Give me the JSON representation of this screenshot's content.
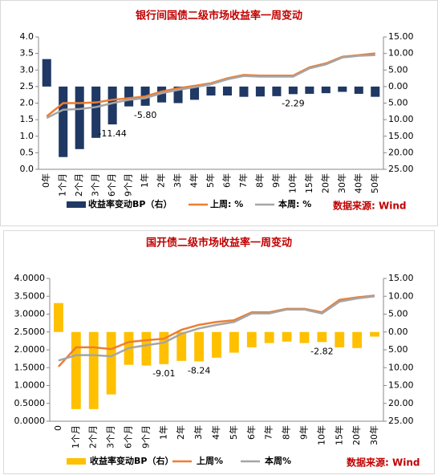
{
  "chart_data": [
    {
      "type": "combo",
      "title": "银行间国债二级市场收益率一周变动",
      "categories": [
        "0年",
        "1个月",
        "2个月",
        "3个月",
        "6个月",
        "9个月",
        "1年",
        "2年",
        "3年",
        "4年",
        "5年",
        "6年",
        "7年",
        "8年",
        "9年",
        "10年",
        "15年",
        "20年",
        "30年",
        "40年",
        "50年"
      ],
      "series": [
        {
          "name": "收益率变动BP（右）",
          "type": "bar",
          "axis": "y2",
          "color": "#1F3864",
          "values": [
            8.3,
            -21.3,
            -18.9,
            -15.5,
            -11.44,
            -6.0,
            -5.8,
            -4.8,
            -5.0,
            -4.0,
            -2.7,
            -2.7,
            -3.1,
            -3.0,
            -2.9,
            -2.29,
            -2.2,
            -2.0,
            -1.6,
            -2.2,
            -3.1
          ],
          "value_labels": [
            null,
            null,
            null,
            null,
            "-11.44",
            null,
            "-5.80",
            null,
            null,
            null,
            null,
            null,
            null,
            null,
            null,
            "-2.29",
            null,
            null,
            null,
            null,
            null
          ]
        },
        {
          "name": "上周: %",
          "type": "line",
          "color": "#ED7D31",
          "values": [
            1.6,
            2.0,
            2.0,
            2.02,
            2.1,
            2.15,
            2.2,
            2.35,
            2.45,
            2.52,
            2.6,
            2.75,
            2.85,
            2.83,
            2.83,
            2.83,
            3.08,
            3.2,
            3.4,
            3.45,
            3.5
          ]
        },
        {
          "name": "本周: %",
          "type": "line",
          "color": "#A5A5A5",
          "values": [
            1.55,
            1.8,
            1.82,
            1.88,
            2.0,
            2.1,
            2.15,
            2.3,
            2.4,
            2.48,
            2.57,
            2.72,
            2.82,
            2.8,
            2.8,
            2.8,
            3.05,
            3.17,
            3.38,
            3.43,
            3.45
          ]
        }
      ],
      "ylim": [
        0,
        4
      ],
      "yticks": [
        {
          "value": 0,
          "label": "0.0"
        },
        {
          "value": 0.5,
          "label": "0.5"
        },
        {
          "value": 1,
          "label": "1.0"
        },
        {
          "value": 1.5,
          "label": "1.5"
        },
        {
          "value": 2,
          "label": "2.0"
        },
        {
          "value": 2.5,
          "label": "2.5"
        },
        {
          "value": 3,
          "label": "3.0"
        },
        {
          "value": 3.5,
          "label": "3.5"
        },
        {
          "value": 4,
          "label": "4.0"
        }
      ],
      "y2lim": [
        -25,
        15
      ],
      "y2ticks": [
        {
          "value": 15,
          "label": "15.00"
        },
        {
          "value": 10,
          "label": "10.00"
        },
        {
          "value": 5,
          "label": "5.00"
        },
        {
          "value": 0,
          "label": "0.00"
        },
        {
          "value": -5,
          "label": "5.00"
        },
        {
          "value": -10,
          "label": "10.00"
        },
        {
          "value": -15,
          "label": "15.00"
        },
        {
          "value": -20,
          "label": "20.00"
        },
        {
          "value": -25,
          "label": "25.00"
        }
      ],
      "source": "数据来源: Wind"
    },
    {
      "type": "combo",
      "title": "国开债二级市场收益率一周变动",
      "categories": [
        "0",
        "1个月",
        "2个月",
        "3个月",
        "6个月",
        "9个月",
        "1年",
        "2年",
        "3年",
        "4年",
        "5年",
        "6年",
        "7年",
        "8年",
        "9年",
        "10年",
        "15年",
        "20年",
        "30年"
      ],
      "series": [
        {
          "name": "收益率变动BP（右）",
          "type": "bar",
          "axis": "y2",
          "color": "#FFC000",
          "values": [
            8.1,
            -21.6,
            -21.6,
            -17.5,
            -9.2,
            -9.4,
            -9.01,
            -8.1,
            -8.24,
            -7.2,
            -5.8,
            -4.3,
            -3.1,
            -2.7,
            -3.1,
            -2.82,
            -4.3,
            -4.5,
            -1.3
          ],
          "value_labels": [
            null,
            null,
            null,
            null,
            null,
            null,
            "-9.01",
            null,
            "-8.24",
            null,
            null,
            null,
            null,
            null,
            null,
            "-2.82",
            null,
            null,
            null
          ]
        },
        {
          "name": "上周%",
          "type": "line",
          "color": "#ED7D31",
          "values": [
            1.53,
            2.07,
            2.07,
            2.02,
            2.22,
            2.27,
            2.31,
            2.56,
            2.7,
            2.78,
            2.83,
            3.05,
            3.05,
            3.15,
            3.15,
            3.05,
            3.4,
            3.47,
            3.52
          ]
        },
        {
          "name": "本周%",
          "type": "line",
          "color": "#A5A5A5",
          "values": [
            1.7,
            1.85,
            1.85,
            1.82,
            2.05,
            2.13,
            2.2,
            2.45,
            2.6,
            2.7,
            2.78,
            3.02,
            3.02,
            3.13,
            3.13,
            3.02,
            3.35,
            3.44,
            3.5
          ]
        }
      ],
      "ylim": [
        0,
        4
      ],
      "yticks": [
        {
          "value": 0,
          "label": "0.0000"
        },
        {
          "value": 0.5,
          "label": "0.5000"
        },
        {
          "value": 1,
          "label": "1.0000"
        },
        {
          "value": 1.5,
          "label": "1.5000"
        },
        {
          "value": 2,
          "label": "2.0000"
        },
        {
          "value": 2.5,
          "label": "2.5000"
        },
        {
          "value": 3,
          "label": "3.0000"
        },
        {
          "value": 3.5,
          "label": "3.5000"
        },
        {
          "value": 4,
          "label": "4.0000"
        }
      ],
      "y2lim": [
        -25,
        15
      ],
      "y2ticks": [
        {
          "value": 15,
          "label": "15.00"
        },
        {
          "value": 10,
          "label": "10.00"
        },
        {
          "value": 5,
          "label": "5.00"
        },
        {
          "value": 0,
          "label": "0.00"
        },
        {
          "value": -5,
          "label": "5.00"
        },
        {
          "value": -10,
          "label": "10.00"
        },
        {
          "value": -15,
          "label": "15.00"
        },
        {
          "value": -20,
          "label": "20.00"
        },
        {
          "value": -25,
          "label": "25.00"
        }
      ],
      "source": "数据来源: Wind"
    }
  ]
}
